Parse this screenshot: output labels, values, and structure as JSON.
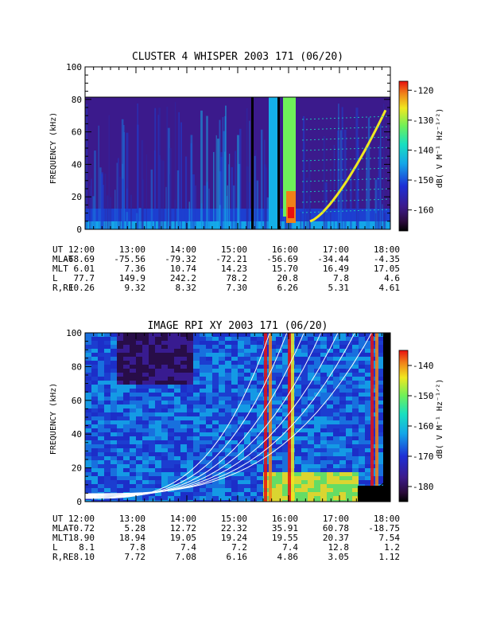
{
  "chart_data": [
    {
      "type": "heatmap",
      "title": "CLUSTER 4 WHISPER 2003 171 (06/20)",
      "ylabel": "FREQUENCY (kHz)",
      "ylim": [
        0,
        100
      ],
      "yticks": [
        "0",
        "20",
        "40",
        "60",
        "80",
        "100"
      ],
      "xticks": [
        "12:00",
        "13:00",
        "14:00",
        "15:00",
        "16:00",
        "17:00",
        "18:00"
      ],
      "colorbar": {
        "label": "dB( V M⁻¹ Hz⁻¹ᐟ²)",
        "range": [
          -167,
          -117
        ],
        "ticks": [
          "-120",
          "-130",
          "-140",
          "-150",
          "-160"
        ]
      },
      "ephemeris": [
        {
          "label": "UT",
          "values": [
            "12:00",
            "13:00",
            "14:00",
            "15:00",
            "16:00",
            "17:00",
            "18:00"
          ]
        },
        {
          "label": "MLAT",
          "values": [
            "-68.69",
            "-75.56",
            "-79.32",
            "-72.21",
            "-56.69",
            "-34.44",
            "-4.35"
          ]
        },
        {
          "label": "MLT",
          "values": [
            "6.01",
            "7.36",
            "10.74",
            "14.23",
            "15.70",
            "16.49",
            "17.05"
          ]
        },
        {
          "label": "L",
          "values": [
            "77.7",
            "149.9",
            "242.2",
            "78.2",
            "20.8",
            "7.8",
            "4.6"
          ]
        },
        {
          "label": "R,RE",
          "values": [
            "10.26",
            "9.32",
            "8.32",
            "7.30",
            "6.26",
            "5.31",
            "4.61"
          ]
        }
      ]
    },
    {
      "type": "heatmap",
      "title": "IMAGE RPI XY 2003 171 (06/20)",
      "ylabel": "FREQUENCY (kHz)",
      "ylim": [
        0,
        100
      ],
      "yticks": [
        "0",
        "20",
        "40",
        "60",
        "80",
        "100"
      ],
      "xticks": [
        "12:00",
        "13:00",
        "14:00",
        "15:00",
        "16:00",
        "17:00",
        "18:00"
      ],
      "colorbar": {
        "label": "dB( V M⁻¹ Hz⁻¹ᐟ²)",
        "range": [
          -185,
          -135
        ],
        "ticks": [
          "-140",
          "-150",
          "-160",
          "-170",
          "-180"
        ]
      },
      "ephemeris": [
        {
          "label": "UT",
          "values": [
            "12:00",
            "13:00",
            "14:00",
            "15:00",
            "16:00",
            "17:00",
            "18:00"
          ]
        },
        {
          "label": "MLAT",
          "values": [
            "-0.72",
            "5.28",
            "12.72",
            "22.32",
            "35.91",
            "60.78",
            "-18.75"
          ]
        },
        {
          "label": "MLT",
          "values": [
            "18.90",
            "18.94",
            "19.05",
            "19.24",
            "19.55",
            "20.37",
            "7.54"
          ]
        },
        {
          "label": "L",
          "values": [
            "8.1",
            "7.8",
            "7.4",
            "7.2",
            "7.4",
            "12.8",
            "1.2"
          ]
        },
        {
          "label": "R,RE",
          "values": [
            "8.10",
            "7.72",
            "7.08",
            "6.16",
            "4.86",
            "3.05",
            "1.12"
          ]
        }
      ]
    }
  ]
}
